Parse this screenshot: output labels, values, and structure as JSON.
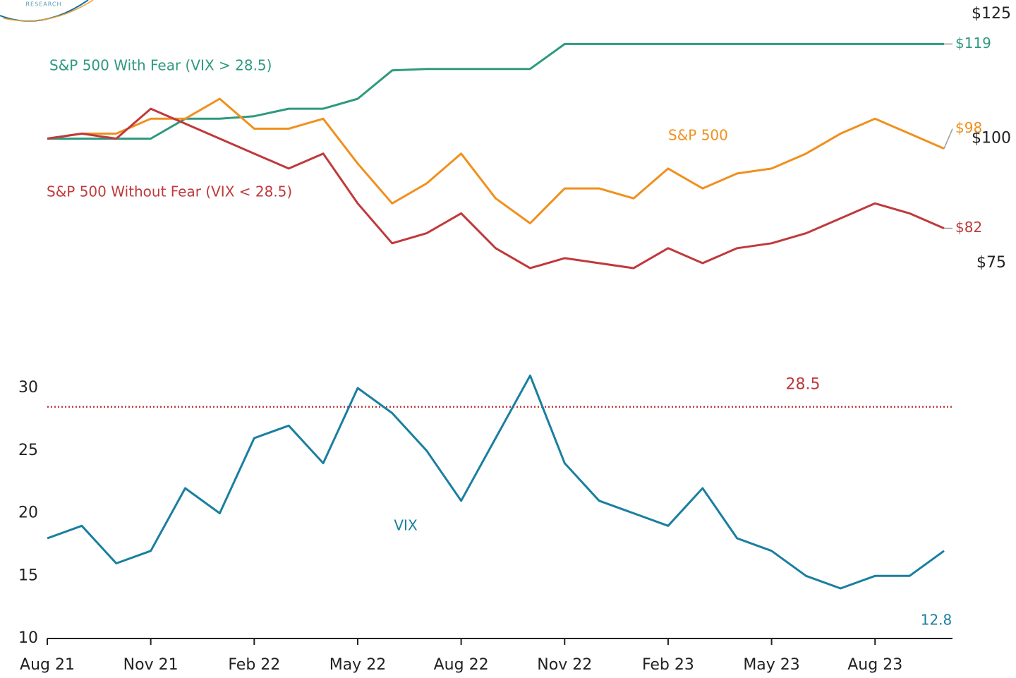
{
  "logo_text": "RESEARCH",
  "chart_data": [
    {
      "type": "line",
      "x": [
        "2021-08",
        "2021-09",
        "2021-10",
        "2021-11",
        "2021-12",
        "2022-01",
        "2022-02",
        "2022-03",
        "2022-04",
        "2022-05",
        "2022-06",
        "2022-07",
        "2022-08",
        "2022-09",
        "2022-10",
        "2022-11",
        "2022-12",
        "2023-01",
        "2023-02",
        "2023-03",
        "2023-04",
        "2023-05",
        "2023-06",
        "2023-07",
        "2023-08",
        "2023-09",
        "2023-10"
      ],
      "xlim": [
        "2021-08",
        "2023-10"
      ],
      "ylim": [
        75,
        125
      ],
      "yticks": [
        {
          "value": 75,
          "label": "$75"
        },
        {
          "value": 100,
          "label": "$100"
        },
        {
          "value": 125,
          "label": "$125"
        }
      ],
      "series": [
        {
          "name": "S&P 500 With Fear (VIX > 28.5)",
          "color": "#2e9a7e",
          "end_label": "$119",
          "values": [
            100,
            100,
            100,
            100,
            104,
            104,
            104.5,
            106,
            106,
            108,
            113.7,
            114,
            114,
            114,
            114,
            119,
            119,
            119,
            119,
            119,
            119,
            119,
            119,
            119,
            119,
            119,
            119
          ]
        },
        {
          "name": "S&P 500",
          "color": "#f0901e",
          "end_label": "$98",
          "values": [
            100,
            101,
            101,
            104,
            104,
            108,
            102,
            102,
            104,
            95,
            87,
            91,
            97,
            88,
            83,
            90,
            90,
            88,
            94,
            90,
            93,
            94,
            97,
            101,
            104,
            101,
            98
          ]
        },
        {
          "name": "S&P 500 Without Fear (VIX < 28.5)",
          "color": "#c0393b",
          "end_label": "$82",
          "values": [
            100,
            101,
            100,
            106,
            103,
            100,
            97,
            94,
            97,
            87,
            79,
            81,
            85,
            78,
            74,
            76,
            75,
            74,
            78,
            75,
            78,
            79,
            81,
            84,
            87,
            85,
            82
          ]
        }
      ]
    },
    {
      "type": "line",
      "x": [
        "2021-08",
        "2021-09",
        "2021-10",
        "2021-11",
        "2021-12",
        "2022-01",
        "2022-02",
        "2022-03",
        "2022-04",
        "2022-05",
        "2022-06",
        "2022-07",
        "2022-08",
        "2022-09",
        "2022-10",
        "2022-11",
        "2022-12",
        "2023-01",
        "2023-02",
        "2023-03",
        "2023-04",
        "2023-05",
        "2023-06",
        "2023-07",
        "2023-08",
        "2023-09",
        "2023-10"
      ],
      "xlim": [
        "2021-08",
        "2023-10"
      ],
      "xticks": [
        {
          "value": "2021-08",
          "label": "Aug 21"
        },
        {
          "value": "2021-11",
          "label": "Nov 21"
        },
        {
          "value": "2022-02",
          "label": "Feb 22"
        },
        {
          "value": "2022-05",
          "label": "May 22"
        },
        {
          "value": "2022-08",
          "label": "Aug 22"
        },
        {
          "value": "2022-11",
          "label": "Nov 22"
        },
        {
          "value": "2023-02",
          "label": "Feb 23"
        },
        {
          "value": "2023-05",
          "label": "May 23"
        },
        {
          "value": "2023-08",
          "label": "Aug 23"
        }
      ],
      "ylim": [
        10,
        38
      ],
      "yticks": [
        10,
        15,
        20,
        25,
        30
      ],
      "reference_line": 28.5,
      "reference_color": "#c0393b",
      "annotations": [
        {
          "text": "12.8"
        }
      ],
      "series": [
        {
          "name": "VIX",
          "color": "#1a7fa0",
          "values": [
            18,
            19,
            16,
            17,
            22,
            20,
            26,
            27,
            24,
            30,
            28,
            25,
            21,
            26,
            31,
            24,
            21,
            20,
            19,
            22,
            18,
            17,
            15,
            14,
            15,
            15,
            17
          ]
        }
      ]
    }
  ]
}
